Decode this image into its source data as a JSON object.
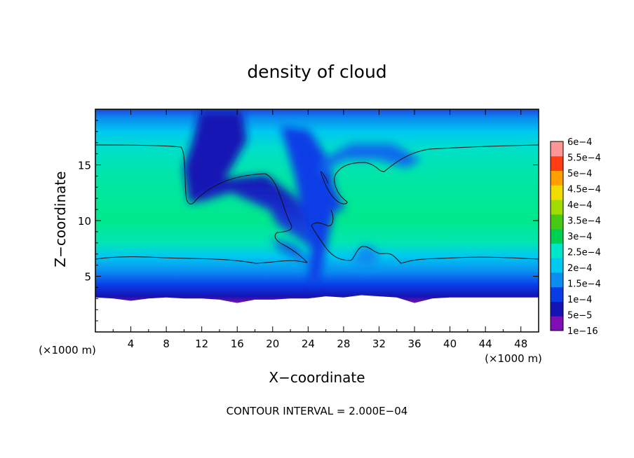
{
  "chart_data": {
    "type": "heatmap",
    "title": "density of cloud",
    "xlabel": "X−coordinate",
    "ylabel": "Z−coordinate",
    "x_unit": "(×1000 m)",
    "y_unit": "(×1000 m)",
    "xlim": [
      0,
      50
    ],
    "ylim": [
      0,
      20
    ],
    "x_ticks": [
      "4",
      "8",
      "12",
      "16",
      "20",
      "24",
      "28",
      "32",
      "36",
      "40",
      "44",
      "48"
    ],
    "y_ticks": [
      "5",
      "10",
      "15"
    ],
    "colorbar": {
      "labels": [
        "1e−16",
        "5e−5",
        "1e−4",
        "1.5e−4",
        "2e−4",
        "2.5e−4",
        "3e−4",
        "3.5e−4",
        "4e−4",
        "4.5e−4",
        "5e−4",
        "5.5e−4",
        "6e−4"
      ],
      "colors": [
        "#7f0fb4",
        "#1414b4",
        "#0a3ce6",
        "#0a8cf0",
        "#00c8f0",
        "#00e6c8",
        "#00d050",
        "#46c814",
        "#a0dc00",
        "#f0dc00",
        "#ffa000",
        "#ff3c14",
        "#ff9696"
      ]
    },
    "cloud_base_profile": {
      "x": [
        0,
        2,
        4,
        6,
        8,
        10,
        12,
        14,
        16,
        18,
        20,
        22,
        24,
        26,
        28,
        30,
        32,
        34,
        36,
        38,
        40,
        42,
        44,
        46,
        48,
        50
      ],
      "z": [
        3.1,
        3.0,
        2.8,
        3.0,
        3.1,
        3.0,
        3.0,
        2.9,
        2.6,
        2.9,
        2.9,
        3.0,
        3.0,
        3.2,
        3.1,
        3.3,
        3.2,
        3.1,
        2.6,
        3.0,
        3.1,
        3.1,
        3.1,
        3.1,
        3.1,
        3.1
      ]
    },
    "contour_interval_note": "CONTOUR INTERVAL = 2.000E−04"
  }
}
